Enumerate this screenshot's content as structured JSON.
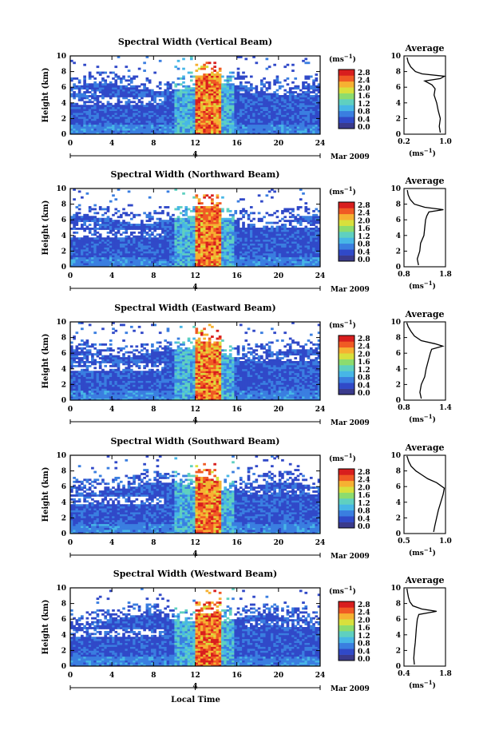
{
  "figure": {
    "xlabel": "Local Time",
    "date_label": "Mar 2009",
    "date_marker": "4",
    "colorbar_unit_main": "(ms",
    "colorbar_unit_exp": "−1",
    "colorbar_unit_close": ")",
    "avg_unit_main": "(ms",
    "avg_unit_exp": "−1",
    "avg_unit_close": ")",
    "colorbar_ticks": [
      "2.8",
      "2.4",
      "2.0",
      "1.6",
      "1.2",
      "0.8",
      "0.4",
      "0.0"
    ]
  },
  "colors": {
    "colormap": [
      "#3a3a8c",
      "#3049c8",
      "#3a7ee0",
      "#47b6e6",
      "#5fd0c0",
      "#8cdc6e",
      "#d8e03c",
      "#f6b132",
      "#f05a24",
      "#d81e1e"
    ]
  },
  "chart_data": [
    {
      "type": "heatmap",
      "title": "Spectral Width (Vertical Beam)",
      "ylabel": "Height (km)",
      "xlim": [
        0,
        24
      ],
      "ylim": [
        0,
        10
      ],
      "x_ticks": [
        0,
        4,
        8,
        12,
        16,
        20,
        24
      ],
      "y_ticks": [
        0,
        2,
        4,
        6,
        8,
        10
      ],
      "colorbar": {
        "range": [
          0.0,
          3.0
        ]
      },
      "profile": {
        "title": "Average",
        "xlim": [
          0.2,
          1.0
        ],
        "x_tick_labels": [
          "0.2",
          "1.0"
        ],
        "height_km": [
          0.2,
          1.0,
          2.0,
          3.0,
          4.0,
          5.0,
          5.8,
          6.3,
          6.8,
          7.1,
          7.4,
          7.7,
          8.0,
          8.6,
          9.2,
          9.8
        ],
        "value": [
          0.9,
          0.88,
          0.9,
          0.86,
          0.83,
          0.78,
          0.8,
          0.74,
          0.6,
          0.9,
          0.98,
          0.55,
          0.42,
          0.33,
          0.28,
          0.26
        ]
      }
    },
    {
      "type": "heatmap",
      "title": "Spectral Width (Northward Beam)",
      "ylabel": "Height (km)",
      "xlim": [
        0,
        24
      ],
      "ylim": [
        0,
        10
      ],
      "x_ticks": [
        0,
        4,
        8,
        12,
        16,
        20,
        24
      ],
      "y_ticks": [
        0,
        2,
        4,
        6,
        8,
        10
      ],
      "colorbar": {
        "range": [
          0.0,
          3.0
        ]
      },
      "profile": {
        "title": "Average",
        "xlim": [
          0.8,
          1.8
        ],
        "x_tick_labels": [
          "0.8",
          "1.8"
        ],
        "height_km": [
          0.2,
          1.0,
          2.0,
          3.0,
          4.0,
          5.0,
          6.0,
          6.5,
          7.0,
          7.3,
          7.6,
          8.0,
          8.6,
          9.2,
          9.8
        ],
        "value": [
          1.15,
          1.12,
          1.18,
          1.2,
          1.28,
          1.3,
          1.32,
          1.35,
          1.4,
          1.75,
          1.3,
          1.05,
          0.95,
          0.9,
          0.88
        ]
      }
    },
    {
      "type": "heatmap",
      "title": "Spectral Width (Eastward Beam)",
      "ylabel": "Height (km)",
      "xlim": [
        0,
        24
      ],
      "ylim": [
        0,
        10
      ],
      "x_ticks": [
        0,
        4,
        8,
        12,
        16,
        20,
        24
      ],
      "y_ticks": [
        0,
        2,
        4,
        6,
        8,
        10
      ],
      "colorbar": {
        "range": [
          0.0,
          3.0
        ]
      },
      "profile": {
        "title": "Average",
        "xlim": [
          0.8,
          1.4
        ],
        "x_tick_labels": [
          "0.8",
          "1.4"
        ],
        "height_km": [
          0.2,
          1.0,
          2.0,
          3.0,
          4.0,
          5.0,
          6.0,
          6.5,
          6.9,
          7.2,
          7.6,
          8.2,
          8.8,
          9.4,
          9.9
        ],
        "value": [
          1.05,
          1.03,
          1.05,
          1.1,
          1.12,
          1.15,
          1.18,
          1.2,
          1.36,
          1.25,
          1.05,
          0.95,
          0.9,
          0.86,
          0.84
        ]
      }
    },
    {
      "type": "heatmap",
      "title": "Spectral Width (Southward Beam)",
      "ylabel": "Height (km)",
      "xlim": [
        0,
        24
      ],
      "ylim": [
        0,
        10
      ],
      "x_ticks": [
        0,
        4,
        8,
        12,
        16,
        20,
        24
      ],
      "y_ticks": [
        0,
        2,
        4,
        6,
        8,
        10
      ],
      "colorbar": {
        "range": [
          0.0,
          3.0
        ]
      },
      "profile": {
        "title": "Average",
        "xlim": [
          0.3,
          1.0
        ],
        "x_tick_labels": [
          "0.5",
          "1.0"
        ],
        "height_km": [
          0.2,
          1.0,
          2.0,
          3.0,
          4.0,
          5.0,
          5.8,
          6.5,
          7.0,
          7.5,
          8.0,
          8.6,
          9.2,
          9.9
        ],
        "value": [
          0.8,
          0.82,
          0.85,
          0.88,
          0.92,
          0.96,
          0.98,
          0.85,
          0.7,
          0.6,
          0.5,
          0.42,
          0.38,
          0.35
        ]
      }
    },
    {
      "type": "heatmap",
      "title": "Spectral Width (Westward Beam)",
      "ylabel": "Height (km)",
      "xlim": [
        0,
        24
      ],
      "ylim": [
        0,
        10
      ],
      "x_ticks": [
        0,
        4,
        8,
        12,
        16,
        20,
        24
      ],
      "y_ticks": [
        0,
        2,
        4,
        6,
        8,
        10
      ],
      "colorbar": {
        "range": [
          0.0,
          3.0
        ]
      },
      "profile": {
        "title": "Average",
        "xlim": [
          0.4,
          1.8
        ],
        "x_tick_labels": [
          "0.4",
          "1.8"
        ],
        "height_km": [
          0.2,
          1.0,
          2.0,
          3.0,
          4.0,
          5.0,
          6.0,
          6.6,
          7.0,
          7.3,
          7.7,
          8.2,
          8.8,
          9.4,
          9.9
        ],
        "value": [
          0.75,
          0.73,
          0.75,
          0.78,
          0.8,
          0.82,
          0.85,
          0.9,
          1.5,
          1.0,
          0.7,
          0.6,
          0.55,
          0.52,
          0.5
        ]
      }
    }
  ]
}
